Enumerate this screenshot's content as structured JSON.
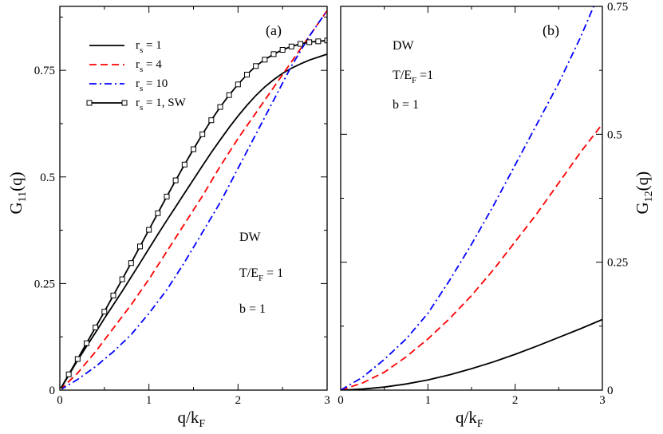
{
  "chart_data": [
    {
      "type": "line",
      "panel_label": "(a)",
      "xlabel": {
        "main": "q/k",
        "sub": "F"
      },
      "ylabel": {
        "main": "G",
        "sub": "11",
        "suffix": "(q)"
      },
      "xlim": [
        0,
        3
      ],
      "ylim": [
        0,
        0.9
      ],
      "xticks": [
        {
          "v": 0,
          "label": "0"
        },
        {
          "v": 1,
          "label": "1"
        },
        {
          "v": 2,
          "label": "2"
        },
        {
          "v": 3,
          "label": "3"
        }
      ],
      "yticks": [
        {
          "v": 0,
          "label": "0"
        },
        {
          "v": 0.25,
          "label": "0.25"
        },
        {
          "v": 0.5,
          "label": "0.5"
        },
        {
          "v": 0.75,
          "label": "0.75"
        }
      ],
      "legend_position": "top-left",
      "annotations": [
        {
          "main": "DW"
        },
        {
          "main": "T/E",
          "sub": "F",
          "suffix": " = 1"
        },
        {
          "main": "b = 1"
        }
      ],
      "series": [
        {
          "name": {
            "main": "r",
            "sub": "s",
            "suffix": " = 1"
          },
          "color": "#000000",
          "dash": "solid",
          "marker": "none",
          "x": [
            0,
            0.1,
            0.2,
            0.3,
            0.4,
            0.5,
            0.6,
            0.7,
            0.8,
            0.9,
            1.0,
            1.1,
            1.2,
            1.3,
            1.4,
            1.5,
            1.6,
            1.7,
            1.8,
            1.9,
            2.0,
            2.1,
            2.2,
            2.3,
            2.4,
            2.5,
            2.6,
            2.7,
            2.8,
            2.9,
            3.0
          ],
          "y": [
            0,
            0.035,
            0.07,
            0.103,
            0.135,
            0.168,
            0.2,
            0.232,
            0.265,
            0.298,
            0.332,
            0.365,
            0.398,
            0.43,
            0.462,
            0.494,
            0.526,
            0.557,
            0.587,
            0.616,
            0.643,
            0.668,
            0.691,
            0.711,
            0.728,
            0.743,
            0.755,
            0.765,
            0.774,
            0.781,
            0.788
          ]
        },
        {
          "name": {
            "main": "r",
            "sub": "s",
            "suffix": " = 4"
          },
          "color": "#ff0000",
          "dash": "dashed",
          "marker": "none",
          "x": [
            0,
            0.2,
            0.4,
            0.6,
            0.8,
            1.0,
            1.2,
            1.4,
            1.6,
            1.8,
            2.0,
            2.2,
            2.4,
            2.6,
            2.8,
            3.0
          ],
          "y": [
            0,
            0.04,
            0.09,
            0.145,
            0.2,
            0.26,
            0.325,
            0.39,
            0.455,
            0.525,
            0.59,
            0.65,
            0.71,
            0.77,
            0.83,
            0.89
          ]
        },
        {
          "name": {
            "main": "r",
            "sub": "s",
            "suffix": " = 10"
          },
          "color": "#0000ff",
          "dash": "dashdot",
          "marker": "none",
          "x": [
            0,
            0.2,
            0.4,
            0.6,
            0.8,
            1.0,
            1.2,
            1.4,
            1.6,
            1.8,
            2.0,
            2.2,
            2.4,
            2.6,
            2.8,
            3.0
          ],
          "y": [
            0,
            0.025,
            0.055,
            0.09,
            0.13,
            0.18,
            0.235,
            0.3,
            0.37,
            0.44,
            0.52,
            0.6,
            0.68,
            0.76,
            0.83,
            0.89
          ]
        },
        {
          "name": {
            "main": "r",
            "sub": "s",
            "suffix": " = 1, SW"
          },
          "color": "#000000",
          "dash": "solid",
          "marker": "square",
          "x": [
            0,
            0.1,
            0.2,
            0.3,
            0.4,
            0.5,
            0.6,
            0.7,
            0.8,
            0.9,
            1.0,
            1.1,
            1.2,
            1.3,
            1.4,
            1.5,
            1.6,
            1.7,
            1.8,
            1.9,
            2.0,
            2.1,
            2.2,
            2.3,
            2.4,
            2.5,
            2.6,
            2.7,
            2.8,
            2.9,
            3.0
          ],
          "y": [
            0,
            0.037,
            0.073,
            0.11,
            0.147,
            0.184,
            0.222,
            0.26,
            0.298,
            0.337,
            0.376,
            0.415,
            0.454,
            0.492,
            0.529,
            0.565,
            0.6,
            0.633,
            0.664,
            0.692,
            0.717,
            0.74,
            0.76,
            0.775,
            0.788,
            0.798,
            0.806,
            0.812,
            0.816,
            0.818,
            0.82
          ]
        }
      ]
    },
    {
      "type": "line",
      "panel_label": "(b)",
      "xlabel": {
        "main": "q/k",
        "sub": "F"
      },
      "ylabel": {
        "main": "G",
        "sub": "12",
        "suffix": "(q)"
      },
      "xlim": [
        0,
        3
      ],
      "ylim": [
        0,
        0.75
      ],
      "xticks": [
        {
          "v": 0,
          "label": "0"
        },
        {
          "v": 1,
          "label": "1"
        },
        {
          "v": 2,
          "label": "2"
        },
        {
          "v": 3,
          "label": "3"
        }
      ],
      "yticks": [
        {
          "v": 0,
          "label": "0"
        },
        {
          "v": 0.25,
          "label": "0.25"
        },
        {
          "v": 0.5,
          "label": "0.5"
        },
        {
          "v": 0.75,
          "label": "0.75"
        }
      ],
      "annotations": [
        {
          "main": "DW"
        },
        {
          "main": "T/E",
          "sub": "F",
          "suffix": " =1"
        },
        {
          "main": "b = 1"
        }
      ],
      "series": [
        {
          "color": "#000000",
          "dash": "solid",
          "marker": "none",
          "x": [
            0,
            0.25,
            0.5,
            0.75,
            1.0,
            1.25,
            1.5,
            1.75,
            2.0,
            2.25,
            2.5,
            2.75,
            3.0
          ],
          "y": [
            0,
            0.002,
            0.006,
            0.012,
            0.02,
            0.03,
            0.042,
            0.055,
            0.07,
            0.086,
            0.103,
            0.12,
            0.138
          ]
        },
        {
          "color": "#ff0000",
          "dash": "dashed",
          "marker": "none",
          "x": [
            0,
            0.25,
            0.5,
            0.75,
            1.0,
            1.25,
            1.5,
            1.75,
            2.0,
            2.25,
            2.5,
            2.75,
            3.0
          ],
          "y": [
            0,
            0.014,
            0.035,
            0.065,
            0.1,
            0.14,
            0.185,
            0.235,
            0.29,
            0.345,
            0.405,
            0.465,
            0.52
          ]
        },
        {
          "color": "#0000ff",
          "dash": "dashdot",
          "marker": "none",
          "x": [
            0,
            0.25,
            0.5,
            0.75,
            1.0,
            1.25,
            1.5,
            1.75,
            2.0,
            2.25,
            2.5,
            2.75,
            2.9
          ],
          "y": [
            0,
            0.025,
            0.06,
            0.1,
            0.15,
            0.215,
            0.285,
            0.36,
            0.44,
            0.52,
            0.6,
            0.69,
            0.75
          ]
        }
      ]
    }
  ]
}
